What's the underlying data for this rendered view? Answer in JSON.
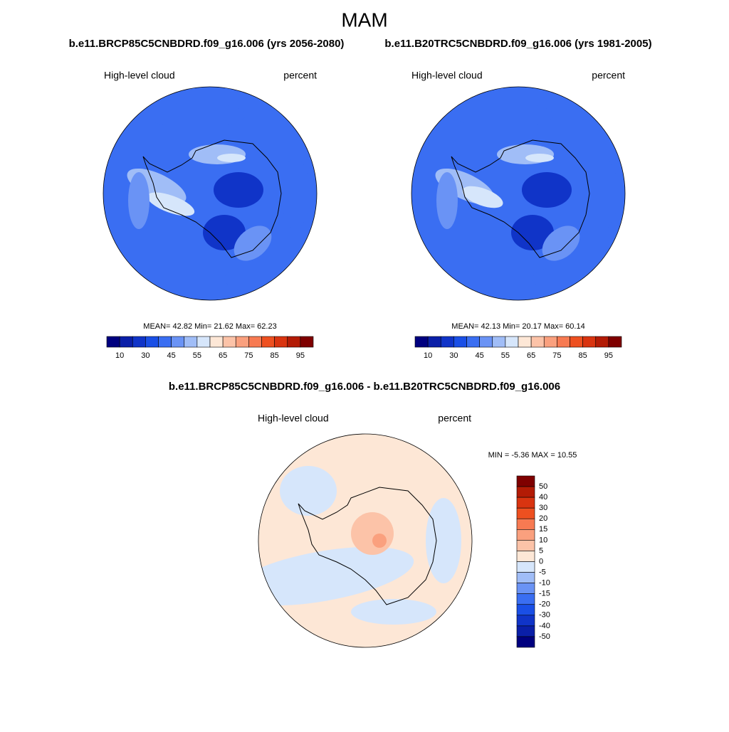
{
  "title": "MAM",
  "panels": [
    {
      "case": "b.e11.BRCP85C5CNBDRD.f09_g16.006 (yrs 2056-2080)",
      "variable": "High-level cloud",
      "units": "percent",
      "stats": "MEAN=  42.82  Min=  21.62  Max=  62.23",
      "colorbar": {
        "labels": [
          "10",
          "30",
          "45",
          "55",
          "65",
          "75",
          "85",
          "95"
        ]
      }
    },
    {
      "case": "b.e11.B20TRC5CNBDRD.f09_g16.006 (yrs 1981-2005)",
      "variable": "High-level cloud",
      "units": "percent",
      "stats": "MEAN=  42.13  Min=  20.17  Max=  60.14",
      "colorbar": {
        "labels": [
          "10",
          "30",
          "45",
          "55",
          "65",
          "75",
          "85",
          "95"
        ]
      }
    }
  ],
  "difference": {
    "title": "b.e11.BRCP85C5CNBDRD.f09_g16.006 - b.e11.B20TRC5CNBDRD.f09_g16.006",
    "variable": "High-level cloud",
    "units": "percent",
    "stats": "MIN =  -5.36 MAX =  10.55",
    "colorbar": {
      "labels": [
        "50",
        "40",
        "30",
        "20",
        "15",
        "10",
        "5",
        "0",
        "-5",
        "-10",
        "-15",
        "-20",
        "-30",
        "-40",
        "-50"
      ]
    }
  },
  "palette": [
    "#00007f",
    "#0a1fa8",
    "#1034c8",
    "#1a4fe6",
    "#3a6ef2",
    "#6a93f5",
    "#a0bdf7",
    "#d6e6fb",
    "#fde7d6",
    "#fcc3a8",
    "#faa07e",
    "#f77a52",
    "#ee5020",
    "#d93410",
    "#b31b05",
    "#7f0000"
  ]
}
